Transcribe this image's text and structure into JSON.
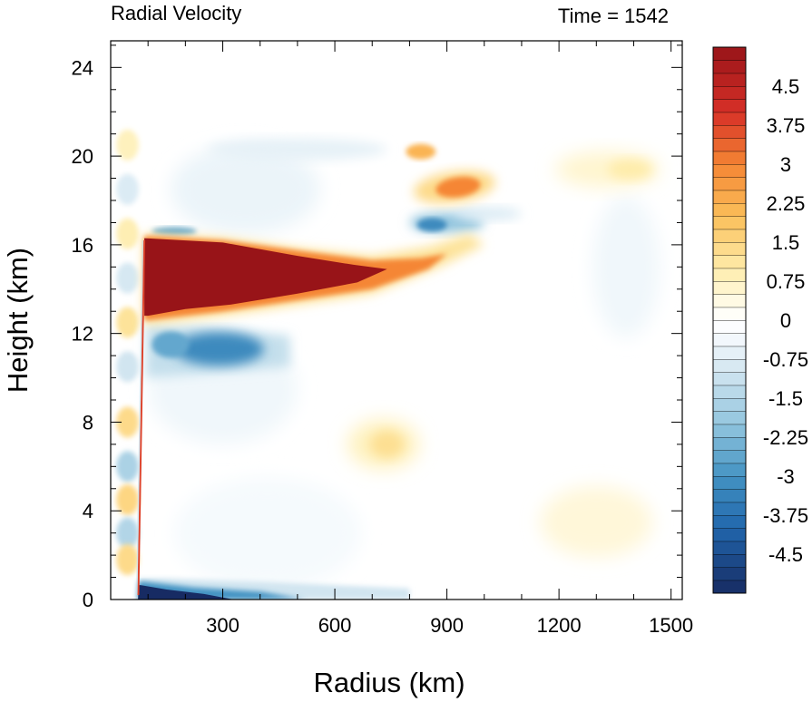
{
  "chart_data": {
    "type": "heatmap",
    "title": "Radial Velocity",
    "subtitle": "Time = 1542",
    "xlabel": "Radius (km)",
    "ylabel": "Height (km)",
    "xlim": [
      0,
      1530
    ],
    "ylim": [
      0,
      25.2
    ],
    "xticks": [
      300,
      600,
      900,
      1200,
      1500
    ],
    "yticks": [
      0,
      4,
      8,
      12,
      16,
      20,
      24
    ],
    "xtick_labels": [
      "300",
      "600",
      "900",
      "1200",
      "1500"
    ],
    "ytick_labels": [
      "0",
      "4",
      "8",
      "12",
      "16",
      "20",
      "24"
    ],
    "colorbar": {
      "levels": [
        -5.25,
        -5,
        -4.75,
        -4.5,
        -4.25,
        -4,
        -3.75,
        -3.5,
        -3.25,
        -3,
        -2.75,
        -2.5,
        -2.25,
        -2,
        -1.75,
        -1.5,
        -1.25,
        -1,
        -0.75,
        -0.5,
        -0.25,
        0,
        0.25,
        0.5,
        0.75,
        1,
        1.25,
        1.5,
        1.75,
        2,
        2.25,
        2.5,
        2.75,
        3,
        3.25,
        3.5,
        3.75,
        4,
        4.25,
        4.5,
        4.75,
        5,
        5.25
      ],
      "tick_labels": [
        "4.5",
        "3.75",
        "3",
        "2.25",
        "1.5",
        "0.75",
        "0",
        "-0.75",
        "-1.5",
        "-2.25",
        "-3",
        "-3.75",
        "-4.5"
      ],
      "tick_values": [
        4.5,
        3.75,
        3,
        2.25,
        1.5,
        0.75,
        0,
        -0.75,
        -1.5,
        -2.25,
        -3,
        -3.75,
        -4.5
      ]
    },
    "features": [
      {
        "name": "upper-level outflow jet",
        "r_range": [
          90,
          900
        ],
        "z_range": [
          12.7,
          16.3
        ],
        "peak_value": 5.3
      },
      {
        "name": "secondary outflow branch",
        "r_range": [
          800,
          1000
        ],
        "z_range": [
          17.7,
          19.5
        ],
        "peak_value": 3.0
      },
      {
        "name": "inflow below outflow",
        "r_range": [
          90,
          480
        ],
        "z_range": [
          10.5,
          12.6
        ],
        "peak_value": -3.5
      },
      {
        "name": "inflow above outflow",
        "r_range": [
          800,
          1000
        ],
        "z_range": [
          16.4,
          17.3
        ],
        "peak_value": -3.2
      },
      {
        "name": "boundary-layer inflow",
        "r_range": [
          75,
          800
        ],
        "z_range": [
          0,
          0.9
        ],
        "peak_value": -5.3
      },
      {
        "name": "mid-level weak outflow",
        "r_range": [
          640,
          820
        ],
        "z_range": [
          6.0,
          8.0
        ],
        "peak_value": 1.2
      },
      {
        "name": "far-field upper outflow",
        "r_range": [
          1150,
          1470
        ],
        "z_range": [
          18.6,
          20.2
        ],
        "peak_value": 1.0
      }
    ]
  }
}
